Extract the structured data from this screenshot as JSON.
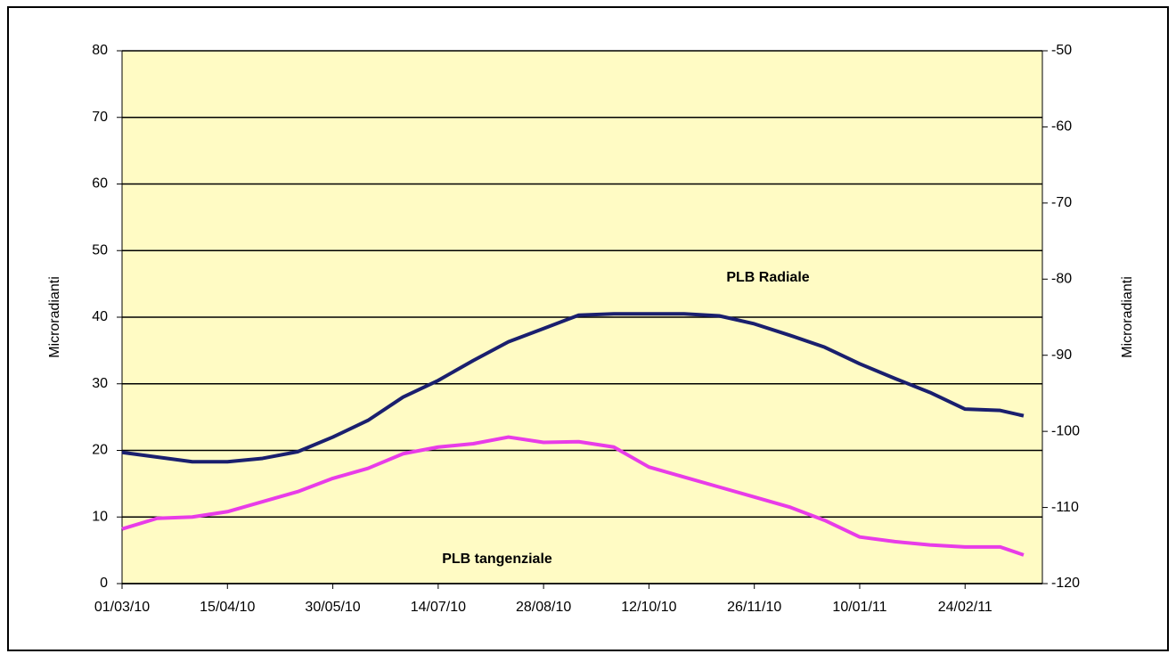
{
  "chart_data": {
    "type": "line",
    "annotations": [
      "PLB Radiale",
      "PLB tangenziale"
    ],
    "y_label": "Microradianti",
    "y2_label": "Microradianti",
    "x": [
      "01/03/10",
      "16/03/10",
      "31/03/10",
      "15/04/10",
      "30/04/10",
      "15/05/10",
      "30/05/10",
      "14/06/10",
      "29/06/10",
      "14/07/10",
      "29/07/10",
      "13/08/10",
      "28/08/10",
      "12/09/10",
      "27/09/10",
      "12/10/10",
      "27/10/10",
      "11/11/10",
      "26/11/10",
      "11/12/10",
      "26/12/10",
      "10/01/11",
      "25/01/11",
      "09/02/11",
      "24/02/11",
      "11/03/11",
      "21/03/11"
    ],
    "series": [
      {
        "name": "PLB Radiale",
        "color": "#1a1f6e",
        "values": [
          19.7,
          19.0,
          18.3,
          18.3,
          18.8,
          19.8,
          22,
          24.5,
          28,
          30.5,
          33.5,
          36.3,
          38.3,
          40.3,
          40.5,
          40.5,
          40.5,
          40.2,
          39,
          37.3,
          35.5,
          33,
          30.8,
          28.7,
          26.2,
          26,
          25.2
        ]
      },
      {
        "name": "PLB tangenziale",
        "color": "#e83ce8",
        "values": [
          8.2,
          9.8,
          10,
          10.8,
          12.3,
          13.8,
          15.8,
          17.3,
          19.5,
          20.5,
          21,
          22,
          21.2,
          21.3,
          20.5,
          17.5,
          16,
          14.5,
          13,
          11.5,
          9.5,
          7,
          6.3,
          5.8,
          5.5,
          5.5,
          4.3
        ]
      }
    ],
    "xlim": [
      "01/03/10",
      "29/03/11"
    ],
    "xticks": [
      "01/03/10",
      "15/04/10",
      "30/05/10",
      "14/07/10",
      "28/08/10",
      "12/10/10",
      "26/11/10",
      "10/01/11",
      "24/02/11"
    ],
    "ylim": [
      0,
      80
    ],
    "yticks": [
      0,
      10,
      20,
      30,
      40,
      50,
      60,
      70,
      80
    ],
    "y2lim": [
      -120,
      -50
    ],
    "y2ticks": [
      -120,
      -110,
      -100,
      -90,
      -80,
      -70,
      -60,
      -50
    ],
    "grid": true,
    "plot_background": "#fffbc4"
  }
}
